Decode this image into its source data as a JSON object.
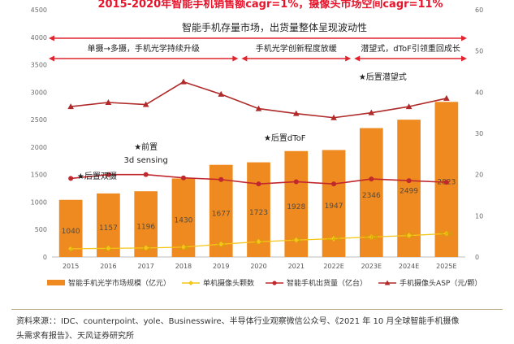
{
  "chart_data": {
    "type": "bar+line",
    "title": "2015-2020年智能手机销售额cagr=1%，摄像头市场空间cagr=11%",
    "subtitle": "智能手机存量市场，出货量整体呈现波动性",
    "phases": [
      "单摄→多摄，手机光学持续升级",
      "手机光学创新程度放缓",
      "潜望式，dToF引领重回成长"
    ],
    "categories": [
      "2015",
      "2016",
      "2017",
      "2018",
      "2019",
      "2020",
      "2021",
      "2022E",
      "2023E",
      "2024E",
      "2025E"
    ],
    "left_axis": {
      "min": 0,
      "max": 4500,
      "ticks": [
        "0",
        "500",
        "1000",
        "1500",
        "2000",
        "2500",
        "3000",
        "3500",
        "4000",
        "4500"
      ]
    },
    "right_axis": {
      "min": 0,
      "max": 60,
      "ticks": [
        "0",
        "10",
        "20",
        "30",
        "40",
        "50",
        "60"
      ]
    },
    "series": [
      {
        "name": "智能手机光学市场规模（亿元）",
        "type": "bar",
        "axis": "left",
        "color": "#ee8a1f",
        "values": [
          1040,
          1157,
          1196,
          1430,
          1677,
          1723,
          1928,
          1947,
          2346,
          2499,
          2823
        ],
        "labels": [
          "1040",
          "1157",
          "1196",
          "1430",
          "1677",
          "1723",
          "1928",
          "1947",
          "2346",
          "2499",
          "2823"
        ]
      },
      {
        "name": "单机摄像头颗数",
        "type": "line",
        "axis": "right",
        "color": "#f5c518",
        "values": [
          2,
          2.1,
          2.2,
          2.4,
          3.1,
          3.7,
          4.1,
          4.45,
          4.86,
          5.2,
          5.67
        ],
        "labels": [
          "2",
          "2.1",
          "2.2",
          "2.4",
          "3.1",
          "3.7",
          "4.1",
          "4.45",
          "4.86",
          "5.2",
          "5.67"
        ]
      },
      {
        "name": "智能手机出货量（亿台）",
        "type": "line",
        "axis": "left",
        "color": "#c0282e",
        "values": [
          1430,
          1500,
          1500,
          1440,
          1410,
          1330,
          1370,
          1330,
          1420,
          1390,
          1360
        ]
      },
      {
        "name": "手机摄像头ASP（元/颗）",
        "type": "line",
        "axis": "right",
        "color": "#b02a2a",
        "values": [
          36.5,
          37.5,
          37,
          42.5,
          39.5,
          36,
          34.8,
          33.8,
          35,
          36.5,
          38.5
        ]
      }
    ],
    "annotations": [
      {
        "text": "★后置双摄",
        "category": "2016"
      },
      {
        "text": "★前置",
        "category": "2017"
      },
      {
        "text": "3d sensing",
        "category": "2017"
      },
      {
        "text": "★后置dToF",
        "category": "2021"
      },
      {
        "text": "★后置潜望式",
        "category": "2023E"
      }
    ]
  },
  "source": {
    "line1": "资料来源：：IDC、counterpoint、yole、Businesswire、半导体行业观察微信公众号、《2021 年 10 月全球智能手机摄像",
    "line2": "头需求有报告》、天风证券研究所"
  }
}
